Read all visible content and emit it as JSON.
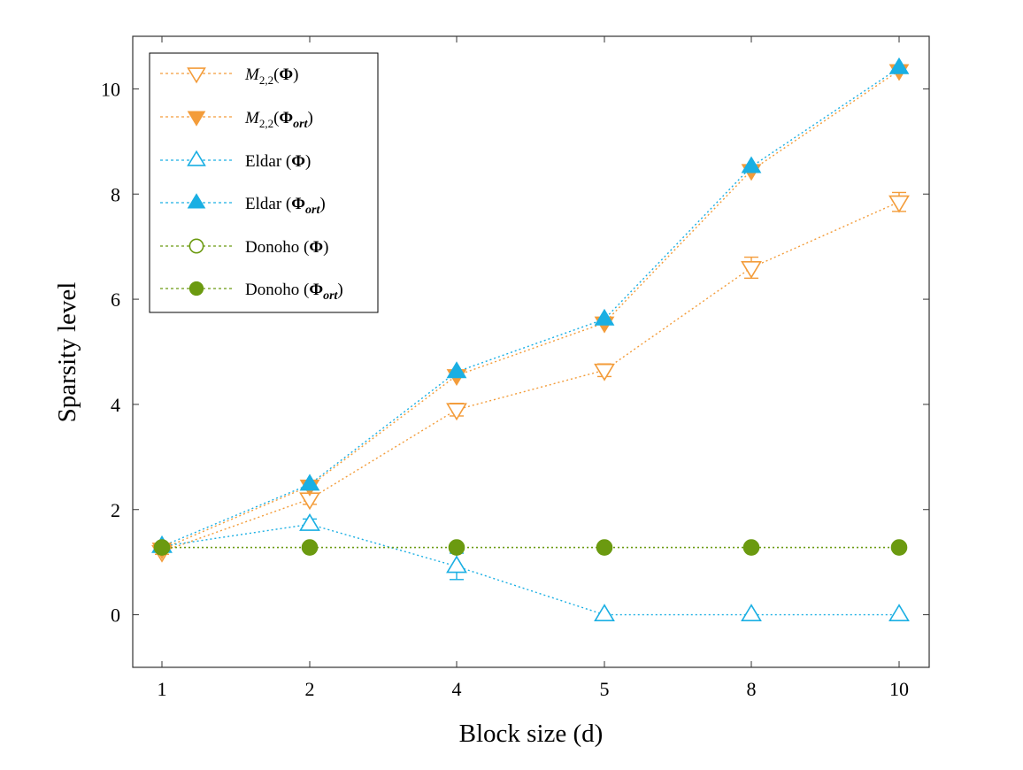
{
  "chart_data": {
    "type": "line",
    "xlabel": "Block size (d)",
    "ylabel": "Sparsity level",
    "categories": [
      "1",
      "2",
      "4",
      "5",
      "8",
      "10"
    ],
    "ylim": [
      -1,
      11
    ],
    "yticks": [
      0,
      2,
      4,
      6,
      8,
      10
    ],
    "grid": false,
    "legend_position": "top-left",
    "series": [
      {
        "name": "M2,2(Φ)",
        "color": "#F39C3A",
        "marker": "triangle-down",
        "filled": false,
        "values": [
          1.2,
          2.2,
          3.9,
          4.65,
          6.6,
          7.85
        ],
        "errors": [
          0.05,
          0.1,
          0.12,
          0.12,
          0.2,
          0.18
        ]
      },
      {
        "name": "M2,2(Φort)",
        "color": "#F39C3A",
        "marker": "triangle-down",
        "filled": true,
        "values": [
          1.25,
          2.45,
          4.55,
          5.55,
          8.45,
          10.35
        ],
        "errors": [
          0,
          0,
          0,
          0,
          0,
          0
        ]
      },
      {
        "name": "Eldar (Φ)",
        "color": "#1AAFE3",
        "marker": "triangle-up",
        "filled": false,
        "values": [
          1.3,
          1.72,
          0.92,
          0.0,
          0.0,
          0.0
        ],
        "errors": [
          0.05,
          0.1,
          0.25,
          0,
          0,
          0
        ]
      },
      {
        "name": "Eldar (Φort)",
        "color": "#1AAFE3",
        "marker": "triangle-up",
        "filled": true,
        "values": [
          1.3,
          2.48,
          4.62,
          5.62,
          8.52,
          10.4
        ],
        "errors": [
          0,
          0,
          0,
          0,
          0,
          0
        ]
      },
      {
        "name": "Donoho (Φ)",
        "color": "#6B9A10",
        "marker": "circle",
        "filled": false,
        "values": [
          1.28,
          1.28,
          1.28,
          1.28,
          1.28,
          1.28
        ],
        "errors": [
          0,
          0,
          0,
          0,
          0,
          0
        ]
      },
      {
        "name": "Donoho (Φort)",
        "color": "#6B9A10",
        "marker": "circle",
        "filled": true,
        "values": [
          1.28,
          1.28,
          1.28,
          1.28,
          1.28,
          1.28
        ],
        "errors": [
          0,
          0,
          0,
          0,
          0,
          0
        ]
      }
    ],
    "legend_labels": [
      {
        "base": "M",
        "sub": "2,2",
        "open": "(",
        "bold": "Φ",
        "boldsub": "",
        "close": ")"
      },
      {
        "base": "M",
        "sub": "2,2",
        "open": "(",
        "bold": "Φ",
        "boldsub": "ort",
        "close": ")"
      },
      {
        "base": "Eldar",
        "sub": "",
        "open": " (",
        "bold": "Φ",
        "boldsub": "",
        "close": ")"
      },
      {
        "base": "Eldar",
        "sub": "",
        "open": " (",
        "bold": "Φ",
        "boldsub": "ort",
        "close": ")"
      },
      {
        "base": "Donoho",
        "sub": "",
        "open": " (",
        "bold": "Φ",
        "boldsub": "",
        "close": ")"
      },
      {
        "base": "Donoho",
        "sub": "",
        "open": " (",
        "bold": "Φ",
        "boldsub": "ort",
        "close": ")"
      }
    ]
  }
}
